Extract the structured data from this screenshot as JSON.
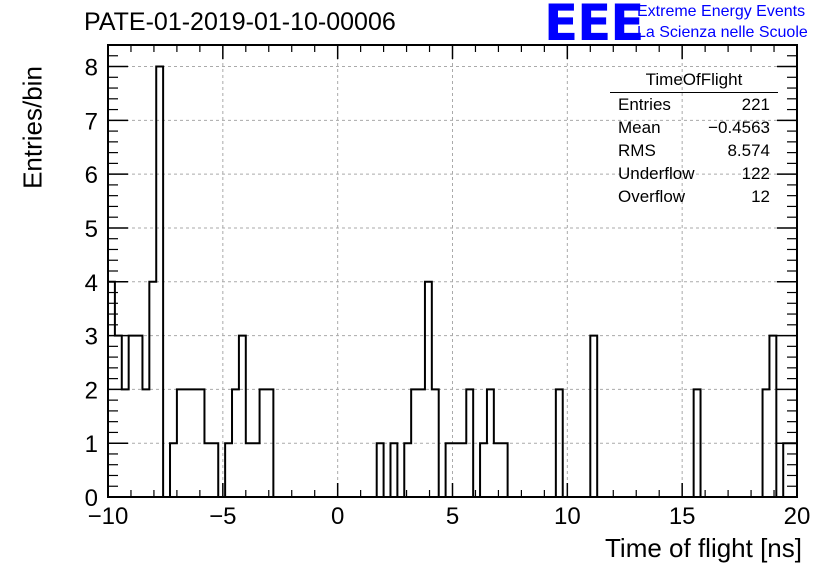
{
  "title": "PATE-01-2019-01-10-00006",
  "logo": {
    "mark": "EEE",
    "line1": "Extreme Energy Events",
    "line2": "La Scienza nelle Scuole",
    "color": "#0000ff"
  },
  "stats_box": {
    "title": "TimeOfFlight",
    "rows": [
      {
        "label": "Entries",
        "value": "221"
      },
      {
        "label": "Mean",
        "value": "−0.4563"
      },
      {
        "label": "RMS",
        "value": "8.574"
      },
      {
        "label": "Underflow",
        "value": "122"
      },
      {
        "label": "Overflow",
        "value": "12"
      }
    ]
  },
  "chart_data": {
    "type": "bar",
    "histogram": true,
    "title": "PATE-01-2019-01-10-00006",
    "xlabel": "Time of flight [ns]",
    "ylabel": "Entries/bin",
    "xlim": [
      -10,
      20
    ],
    "ylim": [
      0,
      8.4
    ],
    "bin_width": 0.3,
    "xticks": [
      -10,
      -5,
      0,
      5,
      10,
      15,
      20
    ],
    "xtick_labels": [
      "−10",
      "−5",
      "0",
      "5",
      "10",
      "15",
      "20"
    ],
    "yticks": [
      0,
      1,
      2,
      3,
      4,
      5,
      6,
      7,
      8
    ],
    "grid": true,
    "bins": [
      {
        "x0": -10.0,
        "x1": -9.7,
        "y": 4
      },
      {
        "x0": -9.7,
        "x1": -9.4,
        "y": 3
      },
      {
        "x0": -9.4,
        "x1": -9.1,
        "y": 2
      },
      {
        "x0": -9.1,
        "x1": -8.8,
        "y": 3
      },
      {
        "x0": -8.8,
        "x1": -8.5,
        "y": 3
      },
      {
        "x0": -8.5,
        "x1": -8.2,
        "y": 2
      },
      {
        "x0": -8.2,
        "x1": -7.9,
        "y": 4
      },
      {
        "x0": -7.9,
        "x1": -7.6,
        "y": 8
      },
      {
        "x0": -7.6,
        "x1": -7.3,
        "y": 0
      },
      {
        "x0": -7.3,
        "x1": -7.0,
        "y": 1
      },
      {
        "x0": -7.0,
        "x1": -6.7,
        "y": 2
      },
      {
        "x0": -6.7,
        "x1": -6.4,
        "y": 2
      },
      {
        "x0": -6.4,
        "x1": -6.1,
        "y": 2
      },
      {
        "x0": -6.1,
        "x1": -5.8,
        "y": 2
      },
      {
        "x0": -5.8,
        "x1": -5.5,
        "y": 1
      },
      {
        "x0": -5.5,
        "x1": -5.2,
        "y": 1
      },
      {
        "x0": -5.2,
        "x1": -4.9,
        "y": 0
      },
      {
        "x0": -4.9,
        "x1": -4.6,
        "y": 1
      },
      {
        "x0": -4.6,
        "x1": -4.3,
        "y": 2
      },
      {
        "x0": -4.3,
        "x1": -4.0,
        "y": 3
      },
      {
        "x0": -4.0,
        "x1": -3.7,
        "y": 1
      },
      {
        "x0": -3.7,
        "x1": -3.4,
        "y": 1
      },
      {
        "x0": -3.4,
        "x1": -3.1,
        "y": 2
      },
      {
        "x0": -3.1,
        "x1": -2.8,
        "y": 2
      },
      {
        "x0": 1.7,
        "x1": 2.0,
        "y": 1
      },
      {
        "x0": 2.3,
        "x1": 2.6,
        "y": 1
      },
      {
        "x0": 2.6,
        "x1": 2.9,
        "y": 0
      },
      {
        "x0": 2.9,
        "x1": 3.2,
        "y": 1
      },
      {
        "x0": 3.2,
        "x1": 3.5,
        "y": 2
      },
      {
        "x0": 3.5,
        "x1": 3.8,
        "y": 2
      },
      {
        "x0": 3.8,
        "x1": 4.1,
        "y": 4
      },
      {
        "x0": 4.1,
        "x1": 4.4,
        "y": 2
      },
      {
        "x0": 4.4,
        "x1": 4.7,
        "y": 0
      },
      {
        "x0": 4.7,
        "x1": 5.0,
        "y": 1
      },
      {
        "x0": 5.0,
        "x1": 5.3,
        "y": 1
      },
      {
        "x0": 5.3,
        "x1": 5.6,
        "y": 1
      },
      {
        "x0": 5.6,
        "x1": 5.9,
        "y": 2
      },
      {
        "x0": 5.9,
        "x1": 6.2,
        "y": 0
      },
      {
        "x0": 6.2,
        "x1": 6.5,
        "y": 1
      },
      {
        "x0": 6.5,
        "x1": 6.8,
        "y": 2
      },
      {
        "x0": 6.8,
        "x1": 7.1,
        "y": 1
      },
      {
        "x0": 7.1,
        "x1": 7.4,
        "y": 1
      },
      {
        "x0": 9.5,
        "x1": 9.8,
        "y": 2
      },
      {
        "x0": 11.0,
        "x1": 11.3,
        "y": 3
      },
      {
        "x0": 15.5,
        "x1": 15.8,
        "y": 2
      },
      {
        "x0": 18.5,
        "x1": 18.8,
        "y": 2
      },
      {
        "x0": 18.8,
        "x1": 19.1,
        "y": 3
      },
      {
        "x0": 19.1,
        "x1": 19.4,
        "y": 0
      },
      {
        "x0": 19.4,
        "x1": 19.7,
        "y": 1
      },
      {
        "x0": 19.7,
        "x1": 20.0,
        "y": 1
      }
    ]
  }
}
